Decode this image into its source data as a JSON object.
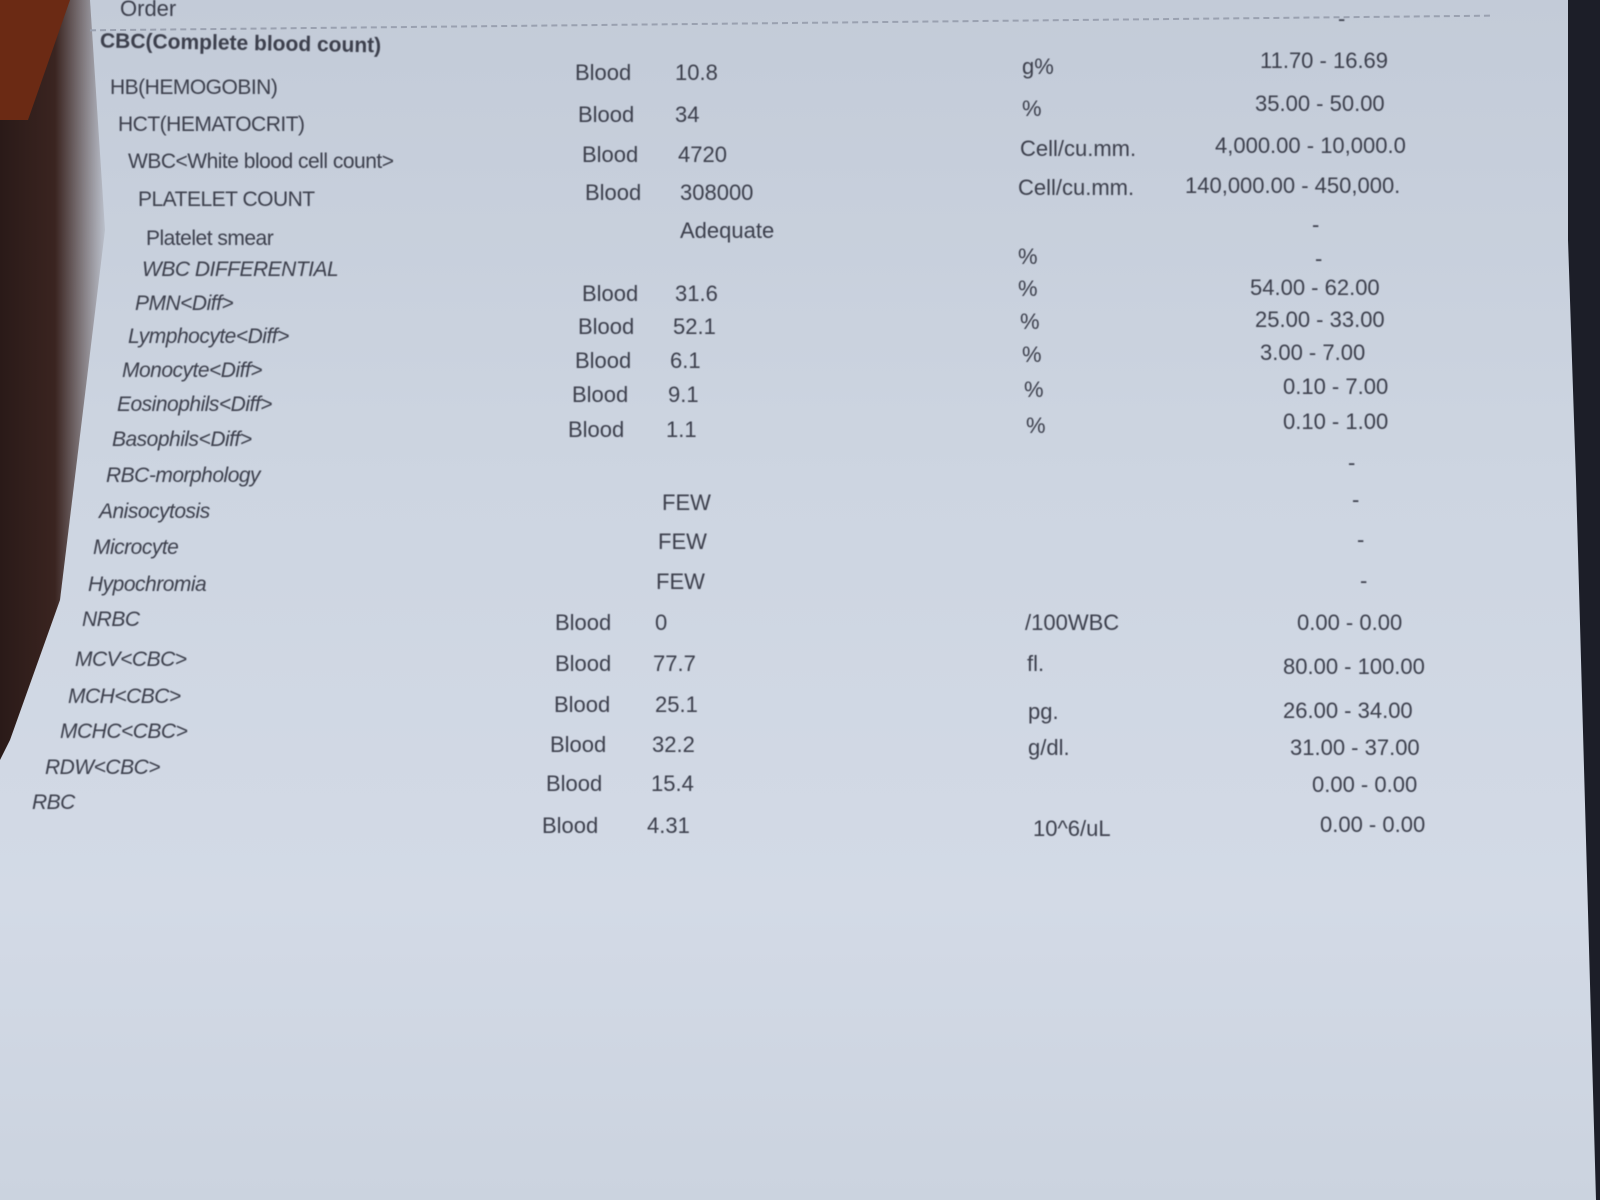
{
  "header": {
    "order_label": "Order"
  },
  "section_title": "CBC(Complete blood count)",
  "rows": [
    {
      "name": "HB(HEMOGOBIN)",
      "specimen": "Blood",
      "result": "10.8",
      "unit": "g%",
      "range": "11.70 -  16.69"
    },
    {
      "name": "HCT(HEMATOCRIT)",
      "specimen": "Blood",
      "result": "34",
      "unit": "%",
      "range": "35.00 -  50.00"
    },
    {
      "name": "WBC<White blood cell count>",
      "specimen": "Blood",
      "result": "4720",
      "unit": "Cell/cu.mm.",
      "range": "4,000.00 -  10,000.0"
    },
    {
      "name": "PLATELET COUNT",
      "specimen": "Blood",
      "result": "308000",
      "unit": "Cell/cu.mm.",
      "range": "140,000.00 -  450,000."
    },
    {
      "name": "Platelet smear",
      "specimen": "",
      "result": "Adequate",
      "unit": "",
      "range": "-"
    },
    {
      "name": "WBC DIFFERENTIAL",
      "specimen": "",
      "result": "",
      "unit": "%",
      "range": "-"
    },
    {
      "name": "PMN<Diff>",
      "specimen": "Blood",
      "result": "31.6",
      "unit": "%",
      "range": "54.00 -  62.00"
    },
    {
      "name": "Lymphocyte<Diff>",
      "specimen": "Blood",
      "result": "52.1",
      "unit": "%",
      "range": "25.00 -  33.00"
    },
    {
      "name": "Monocyte<Diff>",
      "specimen": "Blood",
      "result": "6.1",
      "unit": "%",
      "range": "3.00 -  7.00"
    },
    {
      "name": "Eosinophils<Diff>",
      "specimen": "Blood",
      "result": "9.1",
      "unit": "%",
      "range": "0.10 -  7.00"
    },
    {
      "name": "Basophils<Diff>",
      "specimen": "Blood",
      "result": "1.1",
      "unit": "%",
      "range": "0.10 -  1.00"
    },
    {
      "name": "RBC-morphology",
      "specimen": "",
      "result": "",
      "unit": "",
      "range": "-"
    },
    {
      "name": "Anisocytosis",
      "specimen": "",
      "result": "FEW",
      "unit": "",
      "range": "-"
    },
    {
      "name": "Microcyte",
      "specimen": "",
      "result": "FEW",
      "unit": "",
      "range": "-"
    },
    {
      "name": "Hypochromia",
      "specimen": "",
      "result": "FEW",
      "unit": "",
      "range": "-"
    },
    {
      "name": "NRBC",
      "specimen": "Blood",
      "result": "0",
      "unit": "/100WBC",
      "range": "0.00 -  0.00"
    },
    {
      "name": "MCV<CBC>",
      "specimen": "Blood",
      "result": "77.7",
      "unit": "fl.",
      "range": "80.00 -  100.00"
    },
    {
      "name": "MCH<CBC>",
      "specimen": "Blood",
      "result": "25.1",
      "unit": "pg.",
      "range": "26.00 -  34.00"
    },
    {
      "name": "MCHC<CBC>",
      "specimen": "Blood",
      "result": "32.2",
      "unit": "g/dl.",
      "range": "31.00 -  37.00"
    },
    {
      "name": "RDW<CBC>",
      "specimen": "Blood",
      "result": "15.4",
      "unit": "",
      "range": "0.00 -  0.00"
    },
    {
      "name": "RBC",
      "specimen": "Blood",
      "result": "4.31",
      "unit": "10^6/uL",
      "range": "0.00 -  0.00"
    }
  ],
  "top_right_dash": "-"
}
